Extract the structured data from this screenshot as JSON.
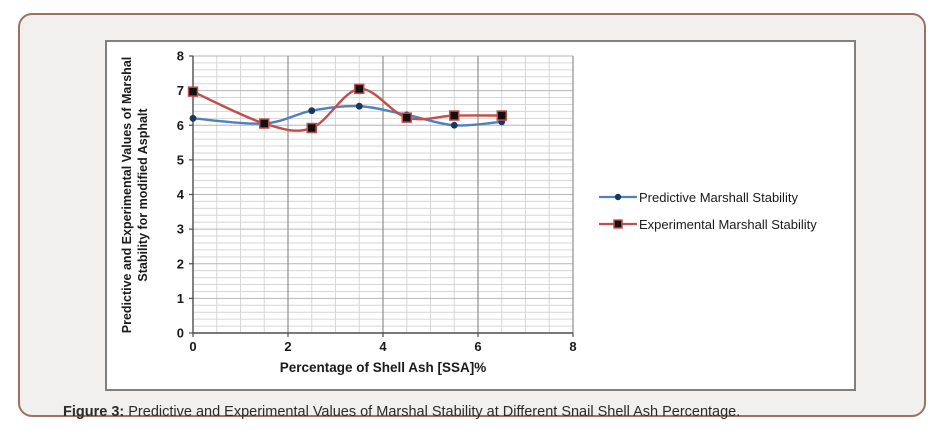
{
  "figure": {
    "caption_label": "Figure 3:",
    "caption_text": " Predictive and Experimental Values of Marshal Stability at Different Snail Shell Ash Percentage."
  },
  "chart_data": {
    "type": "line",
    "x": [
      0,
      1.5,
      2.5,
      3.5,
      4.5,
      5.5,
      6.5
    ],
    "series": [
      {
        "name": "Predictive Marshall Stability",
        "color": "#4f81bd",
        "marker": "circle",
        "marker_color": "#17375e",
        "values": [
          6.2,
          6.05,
          6.42,
          6.55,
          6.3,
          6.0,
          6.1
        ]
      },
      {
        "name": "Experimental Marshall Stability",
        "color": "#c0504d",
        "marker": "square",
        "marker_color": "#111111",
        "values": [
          6.97,
          6.05,
          5.92,
          7.05,
          6.22,
          6.28,
          6.28
        ]
      }
    ],
    "title": "",
    "xlabel": "Percentage of Shell Ash [SSA]%",
    "ylabel_line1": "Predictive and Experimental Values of Marshal",
    "ylabel_line2": "Stability for modified Asphalt",
    "xlim": [
      0,
      8
    ],
    "ylim": [
      0,
      8
    ],
    "x_major_ticks": [
      0,
      2,
      4,
      6,
      8
    ],
    "y_major_ticks": [
      0,
      1,
      2,
      3,
      4,
      5,
      6,
      7,
      8
    ],
    "x_minor_step": 0.5,
    "y_minor_step": 0.2,
    "grid": "major-and-minor",
    "legend_position": "right",
    "smooth": true
  }
}
